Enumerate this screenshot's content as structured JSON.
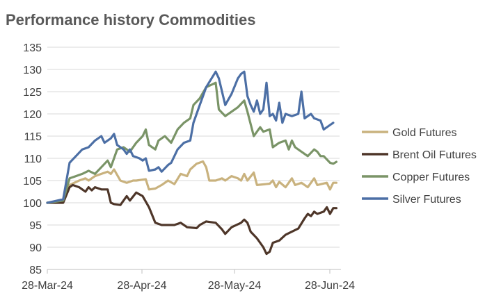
{
  "chart_data": {
    "type": "line",
    "title": "Performance history Commodities",
    "xlabel": "",
    "ylabel": "",
    "ylim": [
      85,
      135
    ],
    "yticks": [
      85,
      90,
      95,
      100,
      105,
      110,
      115,
      120,
      125,
      130,
      135
    ],
    "xticks": [
      "28-Mar-24",
      "28-Apr-24",
      "28-May-24",
      "28-Jun-24"
    ],
    "x_range_days": [
      0,
      92
    ],
    "grid": "horizontal",
    "legend_position": "right",
    "series": [
      {
        "name": "Gold Futures",
        "color": "#C9B27E",
        "points": [
          [
            0,
            100
          ],
          [
            5,
            100.5
          ],
          [
            7,
            104
          ],
          [
            10,
            105
          ],
          [
            12,
            105.5
          ],
          [
            13,
            105
          ],
          [
            15,
            106
          ],
          [
            17,
            106.5
          ],
          [
            19,
            107
          ],
          [
            20,
            106.5
          ],
          [
            21,
            107.5
          ],
          [
            23,
            105
          ],
          [
            25,
            104.5
          ],
          [
            27,
            105
          ],
          [
            28,
            105
          ],
          [
            31,
            105.3
          ],
          [
            32,
            103
          ],
          [
            34,
            103.2
          ],
          [
            36,
            104
          ],
          [
            38,
            105
          ],
          [
            40,
            104.2
          ],
          [
            42,
            106.5
          ],
          [
            44,
            106
          ],
          [
            45,
            107.5
          ],
          [
            47,
            108.8
          ],
          [
            49,
            109.3
          ],
          [
            50,
            108
          ],
          [
            51,
            105
          ],
          [
            53,
            105
          ],
          [
            55,
            105.5
          ],
          [
            56,
            105
          ],
          [
            58,
            106
          ],
          [
            60,
            105.5
          ],
          [
            61,
            105
          ],
          [
            62,
            106.5
          ],
          [
            63,
            105
          ],
          [
            65,
            106.8
          ],
          [
            66,
            104
          ],
          [
            70,
            104.3
          ],
          [
            71,
            105
          ],
          [
            72,
            103.5
          ],
          [
            73,
            104.7
          ],
          [
            75,
            103.5
          ],
          [
            77,
            105.5
          ],
          [
            78,
            104
          ],
          [
            80,
            104.5
          ],
          [
            82,
            103.5
          ],
          [
            84,
            105.5
          ],
          [
            85,
            104
          ],
          [
            88,
            104.5
          ],
          [
            89,
            103
          ],
          [
            90,
            104.5
          ],
          [
            91,
            104.5
          ]
        ]
      },
      {
        "name": "Brent Oil Futures",
        "color": "#4E3629",
        "points": [
          [
            0,
            100
          ],
          [
            5,
            100
          ],
          [
            7,
            103.5
          ],
          [
            8,
            104
          ],
          [
            10,
            103.5
          ],
          [
            12,
            102.5
          ],
          [
            13,
            103.5
          ],
          [
            14,
            102.8
          ],
          [
            15,
            103.5
          ],
          [
            17,
            103
          ],
          [
            19,
            103
          ],
          [
            20,
            100
          ],
          [
            21,
            99.7
          ],
          [
            23,
            99.5
          ],
          [
            25,
            101.5
          ],
          [
            26,
            100.5
          ],
          [
            28,
            102.3
          ],
          [
            30,
            101.5
          ],
          [
            32,
            99
          ],
          [
            34,
            95.5
          ],
          [
            36,
            95
          ],
          [
            40,
            95
          ],
          [
            42,
            95.5
          ],
          [
            44,
            94.5
          ],
          [
            47,
            94.3
          ],
          [
            48,
            95
          ],
          [
            50,
            95.8
          ],
          [
            53,
            95.5
          ],
          [
            55,
            94
          ],
          [
            56,
            93
          ],
          [
            58,
            94.5
          ],
          [
            61,
            95.5
          ],
          [
            62,
            96.2
          ],
          [
            63,
            95.5
          ],
          [
            64,
            93.5
          ],
          [
            66,
            92
          ],
          [
            68,
            90
          ],
          [
            69,
            88.5
          ],
          [
            70,
            89
          ],
          [
            71,
            91
          ],
          [
            73,
            91.5
          ],
          [
            75,
            92.8
          ],
          [
            77,
            93.5
          ],
          [
            79,
            94.2
          ],
          [
            81,
            96.5
          ],
          [
            82,
            97.5
          ],
          [
            83,
            97
          ],
          [
            84,
            98
          ],
          [
            85,
            97.5
          ],
          [
            87,
            98
          ],
          [
            88,
            99
          ],
          [
            89,
            97.5
          ],
          [
            90,
            98.8
          ],
          [
            91,
            98.8
          ]
        ]
      },
      {
        "name": "Copper Futures",
        "color": "#7A9467",
        "points": [
          [
            0,
            100
          ],
          [
            5,
            100.5
          ],
          [
            7,
            105.5
          ],
          [
            9,
            106
          ],
          [
            11,
            106.5
          ],
          [
            13,
            107.2
          ],
          [
            15,
            106.5
          ],
          [
            17,
            108
          ],
          [
            19,
            109.5
          ],
          [
            20,
            108
          ],
          [
            22,
            112
          ],
          [
            24,
            112.5
          ],
          [
            26,
            111.5
          ],
          [
            28,
            113.5
          ],
          [
            30,
            115
          ],
          [
            31,
            116.5
          ],
          [
            32,
            113
          ],
          [
            34,
            112
          ],
          [
            35,
            114
          ],
          [
            37,
            115
          ],
          [
            39,
            113.5
          ],
          [
            41,
            116.5
          ],
          [
            43,
            118
          ],
          [
            45,
            119
          ],
          [
            46,
            122
          ],
          [
            48,
            123.5
          ],
          [
            50,
            126
          ],
          [
            53,
            127
          ],
          [
            54,
            121
          ],
          [
            56,
            119.5
          ],
          [
            58,
            120.5
          ],
          [
            60,
            121.5
          ],
          [
            62,
            123
          ],
          [
            63,
            120.5
          ],
          [
            65,
            115
          ],
          [
            67,
            117
          ],
          [
            68,
            116
          ],
          [
            70,
            116.5
          ],
          [
            71,
            112.5
          ],
          [
            73,
            113.5
          ],
          [
            75,
            114
          ],
          [
            76,
            112
          ],
          [
            77,
            114
          ],
          [
            78,
            112.5
          ],
          [
            80,
            111.5
          ],
          [
            82,
            110.5
          ],
          [
            84,
            112
          ],
          [
            85,
            111.5
          ],
          [
            86,
            110.5
          ],
          [
            87,
            110.5
          ],
          [
            89,
            109
          ],
          [
            90,
            108.8
          ],
          [
            91,
            109.2
          ]
        ]
      },
      {
        "name": "Silver Futures",
        "color": "#4C6FA5",
        "points": [
          [
            0,
            100
          ],
          [
            5,
            100.8
          ],
          [
            7,
            109
          ],
          [
            9,
            110.5
          ],
          [
            11,
            112
          ],
          [
            13,
            112.5
          ],
          [
            15,
            114
          ],
          [
            17,
            115
          ],
          [
            18,
            113.5
          ],
          [
            20,
            114.5
          ],
          [
            21,
            115.5
          ],
          [
            22,
            113
          ],
          [
            24,
            112
          ],
          [
            25,
            111
          ],
          [
            26,
            112
          ],
          [
            27,
            110.5
          ],
          [
            29,
            110
          ],
          [
            30,
            109.5
          ],
          [
            31,
            110
          ],
          [
            32,
            107.2
          ],
          [
            34,
            107.5
          ],
          [
            35,
            108
          ],
          [
            36,
            107
          ],
          [
            38,
            108.5
          ],
          [
            39,
            109
          ],
          [
            41,
            112
          ],
          [
            43,
            113.5
          ],
          [
            45,
            114
          ],
          [
            46,
            118
          ],
          [
            48,
            122
          ],
          [
            50,
            126
          ],
          [
            53,
            129.5
          ],
          [
            54,
            128
          ],
          [
            56,
            122
          ],
          [
            58,
            124.5
          ],
          [
            60,
            128
          ],
          [
            61,
            129
          ],
          [
            62,
            129.5
          ],
          [
            63,
            124
          ],
          [
            64,
            122
          ],
          [
            65,
            120.5
          ],
          [
            66,
            123
          ],
          [
            67,
            120
          ],
          [
            68,
            121
          ],
          [
            69,
            127
          ],
          [
            70,
            119.5
          ],
          [
            71,
            120
          ],
          [
            72,
            118.5
          ],
          [
            73,
            122.5
          ],
          [
            74,
            118
          ],
          [
            75,
            120
          ],
          [
            77,
            119.5
          ],
          [
            79,
            120
          ],
          [
            80,
            125
          ],
          [
            81,
            119
          ],
          [
            82,
            119.5
          ],
          [
            83,
            120
          ],
          [
            84,
            119
          ],
          [
            86,
            118.5
          ],
          [
            87,
            116.5
          ],
          [
            89,
            117.5
          ],
          [
            90,
            118
          ]
        ]
      }
    ]
  }
}
